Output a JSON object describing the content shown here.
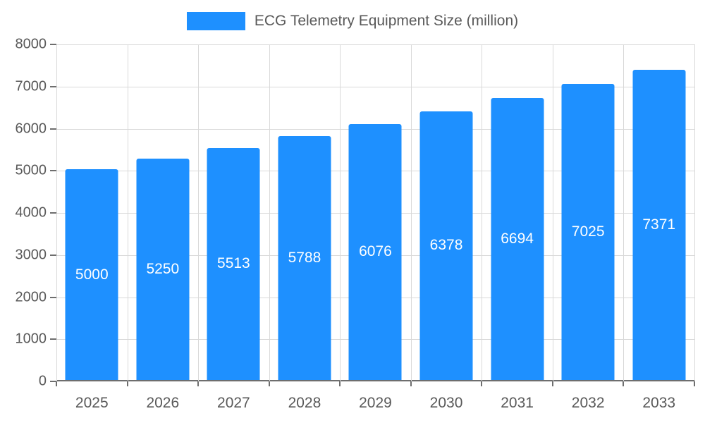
{
  "legend": {
    "label": "ECG Telemetry Equipment Size (million)",
    "swatch_color": "#1e90ff"
  },
  "chart_data": {
    "type": "bar",
    "title": "ECG Telemetry Equipment Size (million)",
    "categories": [
      "2025",
      "2026",
      "2027",
      "2028",
      "2029",
      "2030",
      "2031",
      "2032",
      "2033"
    ],
    "values": [
      5000,
      5250,
      5513,
      5788,
      6076,
      6378,
      6694,
      7025,
      7371
    ],
    "xlabel": "",
    "ylabel": "",
    "ylim": [
      0,
      8000
    ],
    "yticks": [
      0,
      1000,
      2000,
      3000,
      4000,
      5000,
      6000,
      7000,
      8000
    ],
    "bar_color": "#1e90ff",
    "data_label_color": "#ffffff",
    "grid": true,
    "legend_position": "top"
  }
}
